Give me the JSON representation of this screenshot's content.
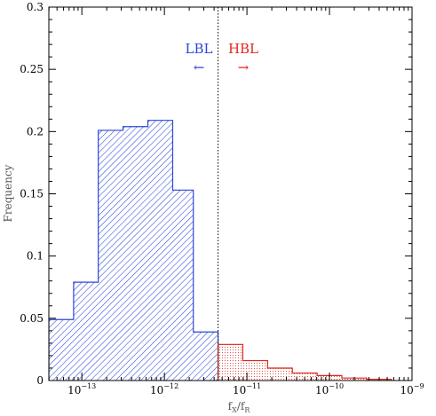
{
  "chart_data": {
    "type": "bar",
    "xscale": "log",
    "xlim": [
      3.98e-14,
      1e-09
    ],
    "ylim": [
      0,
      0.3
    ],
    "xlabel": {
      "base": "f",
      "sub1": "X",
      "slash": "/",
      "sub2": "R"
    },
    "ylabel": "Frequency",
    "yticks": [
      {
        "value": 0,
        "label": "0"
      },
      {
        "value": 0.05,
        "label": "0.05"
      },
      {
        "value": 0.1,
        "label": "0.1"
      },
      {
        "value": 0.15,
        "label": "0.15"
      },
      {
        "value": 0.2,
        "label": "0.2"
      },
      {
        "value": 0.25,
        "label": "0.25"
      },
      {
        "value": 0.3,
        "label": "0.3"
      }
    ],
    "xticks": [
      {
        "value": 1e-13,
        "base": "10",
        "exp": "−13"
      },
      {
        "value": 1e-12,
        "base": "10",
        "exp": "−12"
      },
      {
        "value": 1e-11,
        "base": "10",
        "exp": "−11"
      },
      {
        "value": 1e-10,
        "base": "10",
        "exp": "−10"
      },
      {
        "value": 1e-09,
        "base": "10",
        "exp": "−9"
      }
    ],
    "divider_x": 4.47e-12,
    "series": [
      {
        "name": "LBL",
        "color": "#2d46d8",
        "fill": "diagonal-hatch",
        "bins": [
          {
            "x0": 3.98e-14,
            "x1": 7.94e-14,
            "y": 0.049
          },
          {
            "x0": 7.94e-14,
            "x1": 1.58e-13,
            "y": 0.079
          },
          {
            "x0": 1.58e-13,
            "x1": 3.16e-13,
            "y": 0.201
          },
          {
            "x0": 3.16e-13,
            "x1": 6.31e-13,
            "y": 0.204
          },
          {
            "x0": 6.31e-13,
            "x1": 1.26e-12,
            "y": 0.209
          },
          {
            "x0": 1.26e-12,
            "x1": 2.24e-12,
            "y": 0.153
          },
          {
            "x0": 2.24e-12,
            "x1": 4.47e-12,
            "y": 0.039
          }
        ]
      },
      {
        "name": "HBL",
        "color": "#e0261c",
        "fill": "dots",
        "bins": [
          {
            "x0": 4.47e-12,
            "x1": 8.91e-12,
            "y": 0.029
          },
          {
            "x0": 8.91e-12,
            "x1": 1.78e-11,
            "y": 0.016
          },
          {
            "x0": 1.78e-11,
            "x1": 3.55e-11,
            "y": 0.01
          },
          {
            "x0": 3.55e-11,
            "x1": 7.08e-11,
            "y": 0.006
          },
          {
            "x0": 7.08e-11,
            "x1": 1.41e-10,
            "y": 0.004
          },
          {
            "x0": 1.41e-10,
            "x1": 2.82e-10,
            "y": 0.002
          },
          {
            "x0": 2.82e-10,
            "x1": 5.62e-10,
            "y": 0.001
          }
        ]
      }
    ],
    "annotations": [
      {
        "text": "LBL",
        "arrow": "←",
        "color": "#2d46d8",
        "side": "left"
      },
      {
        "text": "HBL",
        "arrow": "→",
        "color": "#e0261c",
        "side": "right"
      }
    ]
  }
}
